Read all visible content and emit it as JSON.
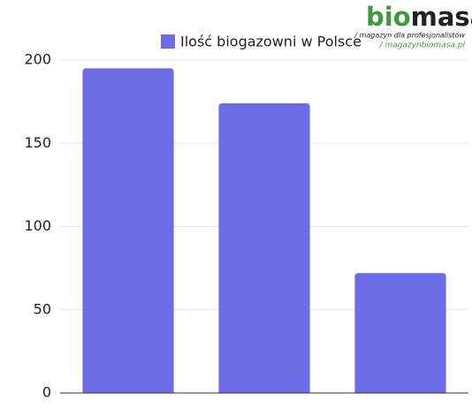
{
  "chart_data": {
    "type": "bar",
    "legend": "Ilość biogazowni w Polsce",
    "categories": [
      null,
      null,
      null
    ],
    "values": [
      195,
      174,
      72
    ],
    "color": "#6c6ce6",
    "ylim": [
      0,
      200
    ],
    "yticks": [
      0,
      50,
      100,
      150,
      200
    ],
    "grid": true
  },
  "logo": {
    "bio": "bio",
    "masa": "masa",
    "tagline": "/ magazyn dla profesjonalistów",
    "url": "/ magazynbiomasa.pl"
  }
}
